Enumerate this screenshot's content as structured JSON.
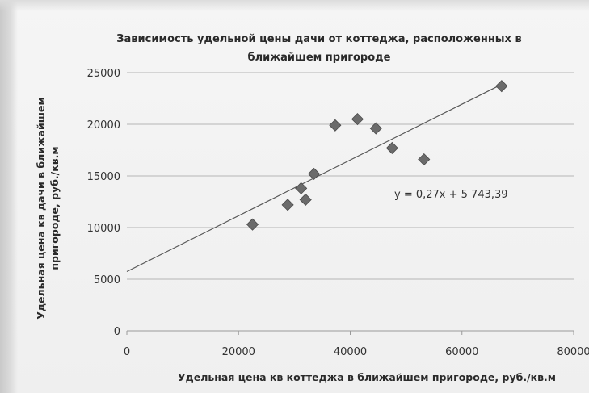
{
  "chart_data": {
    "type": "scatter",
    "title_lines": [
      "Зависимость удельной цены дачи от коттеджа, расположенных в",
      "ближайшем пригороде"
    ],
    "xlabel": "Удельная цена кв коттеджа в ближайшем пригороде, руб./кв.м",
    "ylabel_lines": [
      "Удельная цена кв дачи в ближайшем",
      "пригороде, руб./кв.м"
    ],
    "xlim": [
      0,
      80000
    ],
    "ylim": [
      0,
      25000
    ],
    "x_ticks": [
      0,
      20000,
      40000,
      60000,
      80000
    ],
    "x_tick_labels": [
      "0",
      "20000",
      "40000",
      "60000",
      "80000"
    ],
    "y_ticks": [
      0,
      5000,
      10000,
      15000,
      20000,
      25000
    ],
    "y_tick_labels": [
      "0",
      "5000",
      "10000",
      "15000",
      "20000",
      "25000"
    ],
    "gridlines": "horizontal",
    "marker": "diamond",
    "points": [
      {
        "x": 22500,
        "y": 10300
      },
      {
        "x": 28800,
        "y": 12200
      },
      {
        "x": 31200,
        "y": 13800
      },
      {
        "x": 32000,
        "y": 12700
      },
      {
        "x": 33500,
        "y": 15200
      },
      {
        "x": 37300,
        "y": 19900
      },
      {
        "x": 41300,
        "y": 20500
      },
      {
        "x": 44600,
        "y": 19600
      },
      {
        "x": 47500,
        "y": 17700
      },
      {
        "x": 53200,
        "y": 16600
      },
      {
        "x": 67100,
        "y": 23700
      }
    ],
    "trendline": {
      "slope": 0.27,
      "intercept": 5743.39,
      "x_range": [
        0,
        67100
      ],
      "label": "y = 0,27x + 5 743,39"
    }
  },
  "colors": {
    "marker": "#6b6b6b",
    "marker_edge": "#4a4a4a",
    "trendline": "#555555",
    "grid": "#b5b5b5",
    "axis": "#9a9a9a",
    "text": "#2a2a2a"
  }
}
